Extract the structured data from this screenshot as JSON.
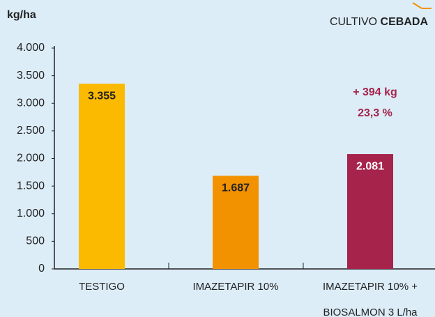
{
  "chart_data": {
    "type": "bar",
    "y_label": "kg/ha",
    "title_parts": [
      "CULTIVO",
      "CEBADA"
    ],
    "categories": [
      "TESTIGO",
      "IMAZETAPIR 10%",
      "IMAZETAPIR 10% + BIOSALMON 3 L/ha"
    ],
    "values": [
      3355,
      1687,
      2081
    ],
    "value_labels": [
      "3.355",
      "1.687",
      "2.081"
    ],
    "colors": [
      "#fbb900",
      "#f39200",
      "#a6234b"
    ],
    "value_label_colors": [
      "#222222",
      "#222222",
      "#ffffff"
    ],
    "annotations": [
      "+ 394 kg",
      "23,3 %"
    ],
    "annotation_color": "#a6234b",
    "ylim": [
      0,
      4000
    ],
    "yticks": [
      0,
      500,
      {
        "value": 1000,
        "label": "1.000"
      },
      {
        "value": 1500,
        "label": "1.500"
      },
      {
        "value": 2000,
        "label": "2.000"
      },
      {
        "value": 2500,
        "label": "2.500"
      },
      {
        "value": 3000,
        "label": "3.000"
      },
      {
        "value": 3500,
        "label": "3.500"
      },
      {
        "value": 4000,
        "label": "4.000"
      }
    ],
    "grid": false
  }
}
